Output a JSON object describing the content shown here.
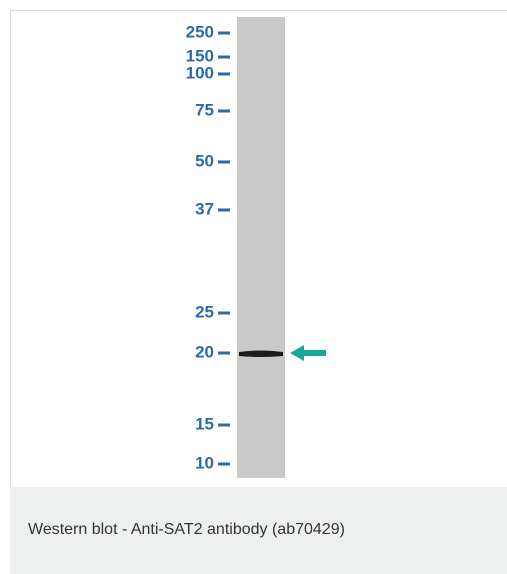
{
  "blot": {
    "markers": [
      250,
      150,
      100,
      75,
      50,
      37,
      25,
      20,
      15,
      10
    ]
  },
  "caption": "Western blot - Anti-SAT2 antibody (ab70429)"
}
